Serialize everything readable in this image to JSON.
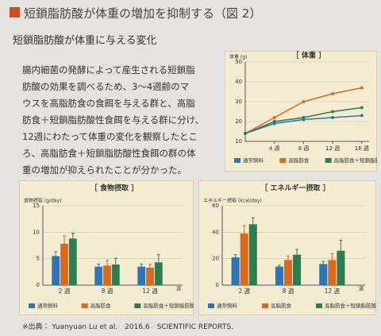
{
  "header": {
    "title": "短鎖脂肪酸が体重の増加を抑制する（図 2）",
    "subtitle": "短鎖脂肪酸が体重に与える変化"
  },
  "body": {
    "lines": [
      "腸内細菌の発酵によって産生される短鎖脂",
      "肪酸の効果を調べるため、3～4週齢のマ",
      "ウスを高脂肪食の食餌を与える群と、高脂",
      "肪食＋短鎖脂肪酸性食餌を与える群に分け、",
      "12週にわたって体重の変化を観察したとこ",
      "ろ、高脂肪食＋短鎖脂肪酸性食餌の群の体",
      "重の増加が抑えられたことが分かった。"
    ]
  },
  "source": "※出典： Yuanyuan Lu et al.　2016.6　SCIENTIFIC REPORTS.",
  "chart_data": [
    {
      "type": "line",
      "title": "［ 体重 ］",
      "y_label": "体重 (g)",
      "x": [
        0,
        4,
        8,
        12,
        16
      ],
      "xlim": [
        0,
        17
      ],
      "xticks": [
        {
          "value": 4,
          "label": "4 週"
        },
        {
          "value": 8,
          "label": "8 週"
        },
        {
          "value": 12,
          "label": "12 週"
        },
        {
          "value": 16,
          "label": "16 週"
        }
      ],
      "ylim": [
        10,
        50
      ],
      "yticks": [
        10,
        20,
        30,
        40,
        50
      ],
      "grid": true,
      "series": [
        {
          "name": "通常飼料",
          "color": "#2f75b5",
          "values": [
            14,
            19,
            21,
            22,
            23
          ]
        },
        {
          "name": "高脂肪食",
          "color": "#d8691f",
          "values": [
            14,
            22,
            30,
            34,
            37
          ]
        },
        {
          "name": "高脂肪食＋短鎖脂肪酸",
          "color": "#2e7d4f",
          "values": [
            14,
            20,
            22,
            25,
            27
          ]
        }
      ]
    },
    {
      "type": "bar",
      "title": "［ 食物摂取 ］",
      "y_label": "食物摂取 (g/day)",
      "x_label": "週",
      "categories": [
        "2 週",
        "8 週",
        "12 週"
      ],
      "ylim": [
        0,
        15
      ],
      "yticks": [
        0,
        5,
        10,
        15
      ],
      "grid": true,
      "series": [
        {
          "name": "通常飼料",
          "color": "#2f75b5",
          "values": [
            5.5,
            3.5,
            3.5
          ],
          "errors": [
            0.8,
            0.5,
            0.5
          ]
        },
        {
          "name": "高脂肪食",
          "color": "#d8691f",
          "values": [
            7.8,
            3.7,
            3.3
          ],
          "errors": [
            1.5,
            1.0,
            0.6
          ]
        },
        {
          "name": "高脂肪食＋短鎖脂肪酸",
          "color": "#2e7d4f",
          "values": [
            8.8,
            3.9,
            4.3
          ],
          "errors": [
            1.0,
            1.2,
            1.5
          ]
        }
      ]
    },
    {
      "type": "bar",
      "title": "［ エネルギー摂取 ］",
      "y_label": "エネルギー摂取 (kcal/day)",
      "x_label": "週",
      "categories": [
        "2 週",
        "8 週",
        "12 週"
      ],
      "ylim": [
        0,
        60
      ],
      "yticks": [
        0,
        20,
        40,
        60
      ],
      "grid": true,
      "series": [
        {
          "name": "通常飼料",
          "color": "#2f75b5",
          "values": [
            21,
            14,
            16
          ],
          "errors": [
            2,
            1,
            2
          ]
        },
        {
          "name": "高脂肪食",
          "color": "#d8691f",
          "values": [
            39,
            19,
            19
          ],
          "errors": [
            6,
            3,
            5
          ]
        },
        {
          "name": "高脂肪食＋短鎖脂肪酸",
          "color": "#2e7d4f",
          "values": [
            46,
            23,
            26
          ],
          "errors": [
            5,
            4,
            8
          ]
        }
      ]
    }
  ]
}
